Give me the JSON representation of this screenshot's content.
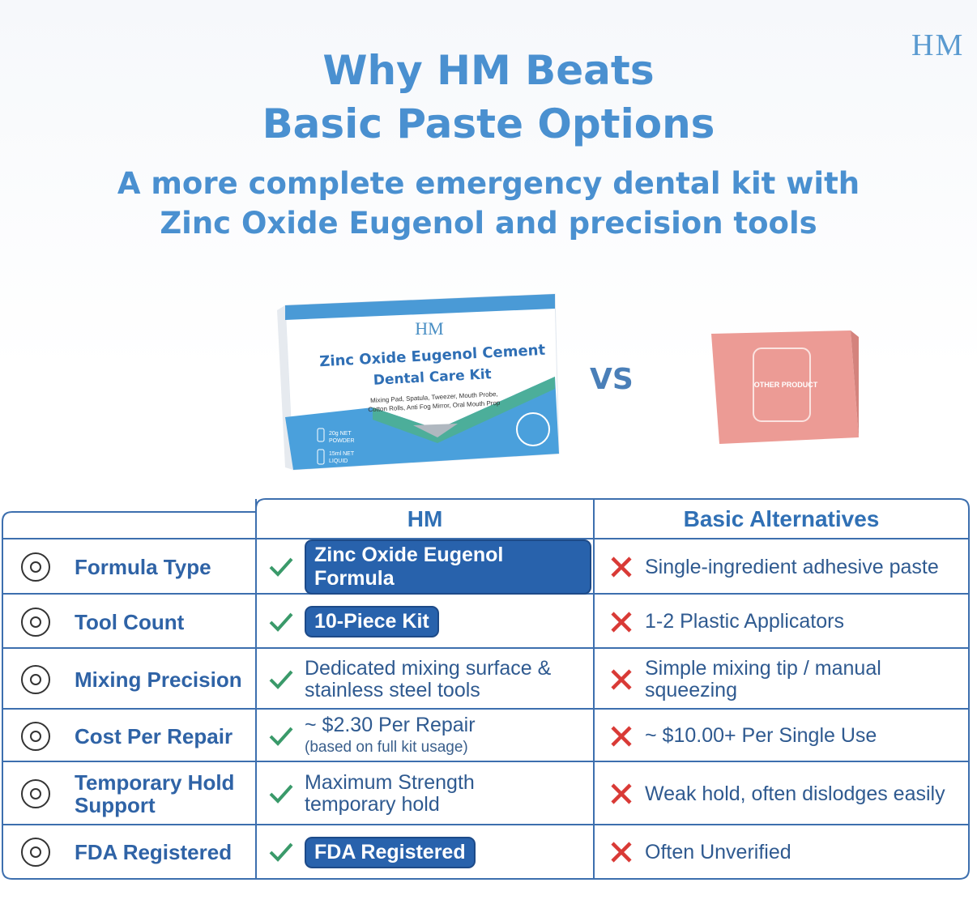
{
  "logo": "HM",
  "header": {
    "title_lines": [
      "Why HM Beats",
      "Basic Paste Options"
    ],
    "subtitle_lines": [
      "A more complete emergency dental kit with",
      "Zinc Oxide Eugenol and precision tools"
    ]
  },
  "products": {
    "hm_box": {
      "logo": "HM",
      "name": "Zinc Oxide Eugenol Cement",
      "subname": "Dental Care Kit",
      "contents": [
        "Mixing Pad, Spatula, Tweezer, Mouth Probe,",
        "Cotton Rolls, Anti Fog Mirror, Oral Mouth Prop"
      ],
      "powder": [
        "20g NET",
        "POWDER"
      ],
      "liquid": [
        "15ml NET",
        "LIQUID"
      ]
    },
    "vs": "VS",
    "other_box": {
      "label": "OTHER PRODUCT"
    }
  },
  "table": {
    "headers": [
      "HM",
      "Basic Alternatives"
    ],
    "rows": [
      {
        "label": [
          "Formula Type"
        ],
        "hm": [
          "Zinc Oxide Eugenol Formula"
        ],
        "alt": [
          "Single-ingredient adhesive paste"
        ]
      },
      {
        "label": [
          "Tool Count"
        ],
        "hm": [
          "10-Piece Kit"
        ],
        "alt": [
          "1-2 Plastic Applicators"
        ]
      },
      {
        "label": [
          "Mixing Precision"
        ],
        "hm": [
          "Dedicated mixing surface &",
          "stainless steel tools"
        ],
        "alt": [
          "Simple mixing tip / manual",
          "squeezing"
        ]
      },
      {
        "label": [
          "Cost Per Repair"
        ],
        "hm": [
          "~ $2.30 Per Repair",
          "(based on full kit usage)"
        ],
        "alt": [
          "~ $10.00+ Per Single Use"
        ]
      },
      {
        "label": [
          "Temporary Hold",
          "Support"
        ],
        "hm": [
          "Maximum Strength",
          "temporary hold"
        ],
        "alt": [
          "Weak hold, often dislodges easily"
        ]
      },
      {
        "label": [
          "FDA Registered"
        ],
        "hm": [
          "FDA Registered"
        ],
        "alt": [
          "Often Unverified"
        ]
      }
    ]
  }
}
